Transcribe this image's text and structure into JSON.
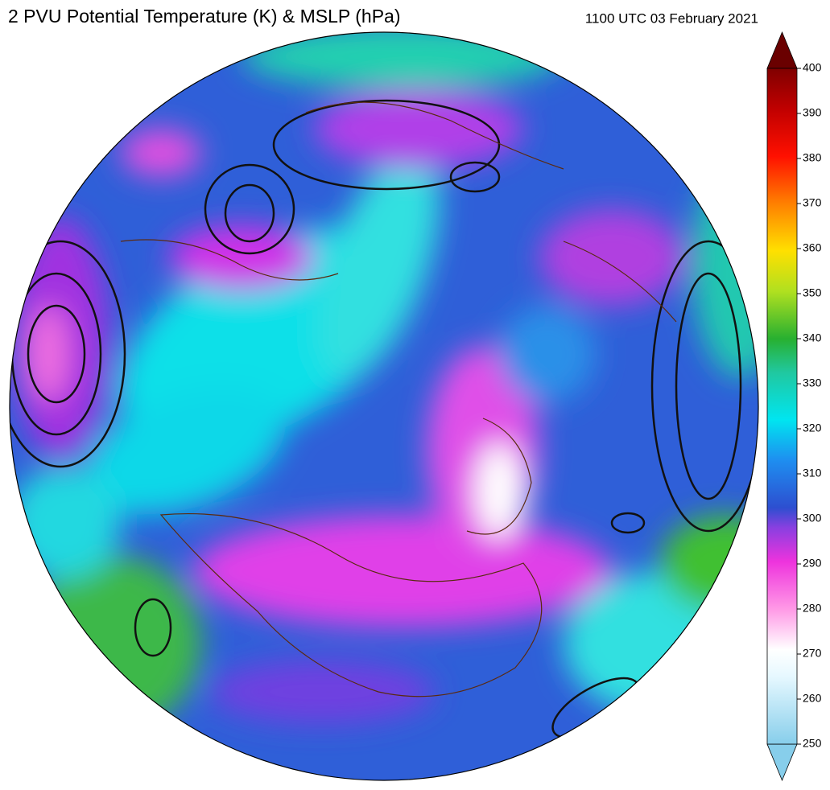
{
  "title": "2 PVU Potential Temperature (K) & MSLP (hPa)",
  "timestamp": "1100 UTC 03 February 2021",
  "colorbar": {
    "ticks": [
      250,
      260,
      270,
      280,
      290,
      300,
      310,
      320,
      330,
      340,
      350,
      360,
      370,
      380,
      390,
      400
    ]
  }
}
